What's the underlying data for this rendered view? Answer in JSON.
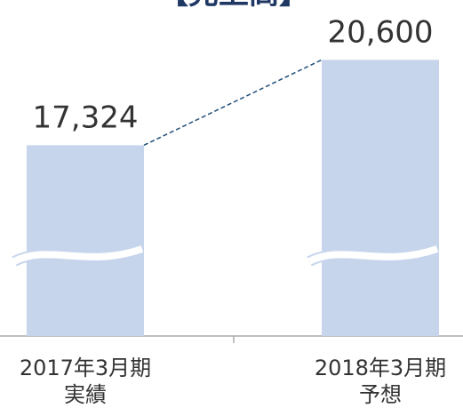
{
  "chart_data": {
    "type": "bar",
    "title": "【売上高】",
    "categories": [
      [
        "2017年3月期",
        "実績"
      ],
      [
        "2018年3月期",
        "予想"
      ]
    ],
    "values": [
      17324,
      20600
    ],
    "value_labels": [
      "17,324",
      "20,600"
    ],
    "color": "#c7d5ec",
    "ylim": [
      10000,
      23000
    ],
    "broken_axis": true
  }
}
